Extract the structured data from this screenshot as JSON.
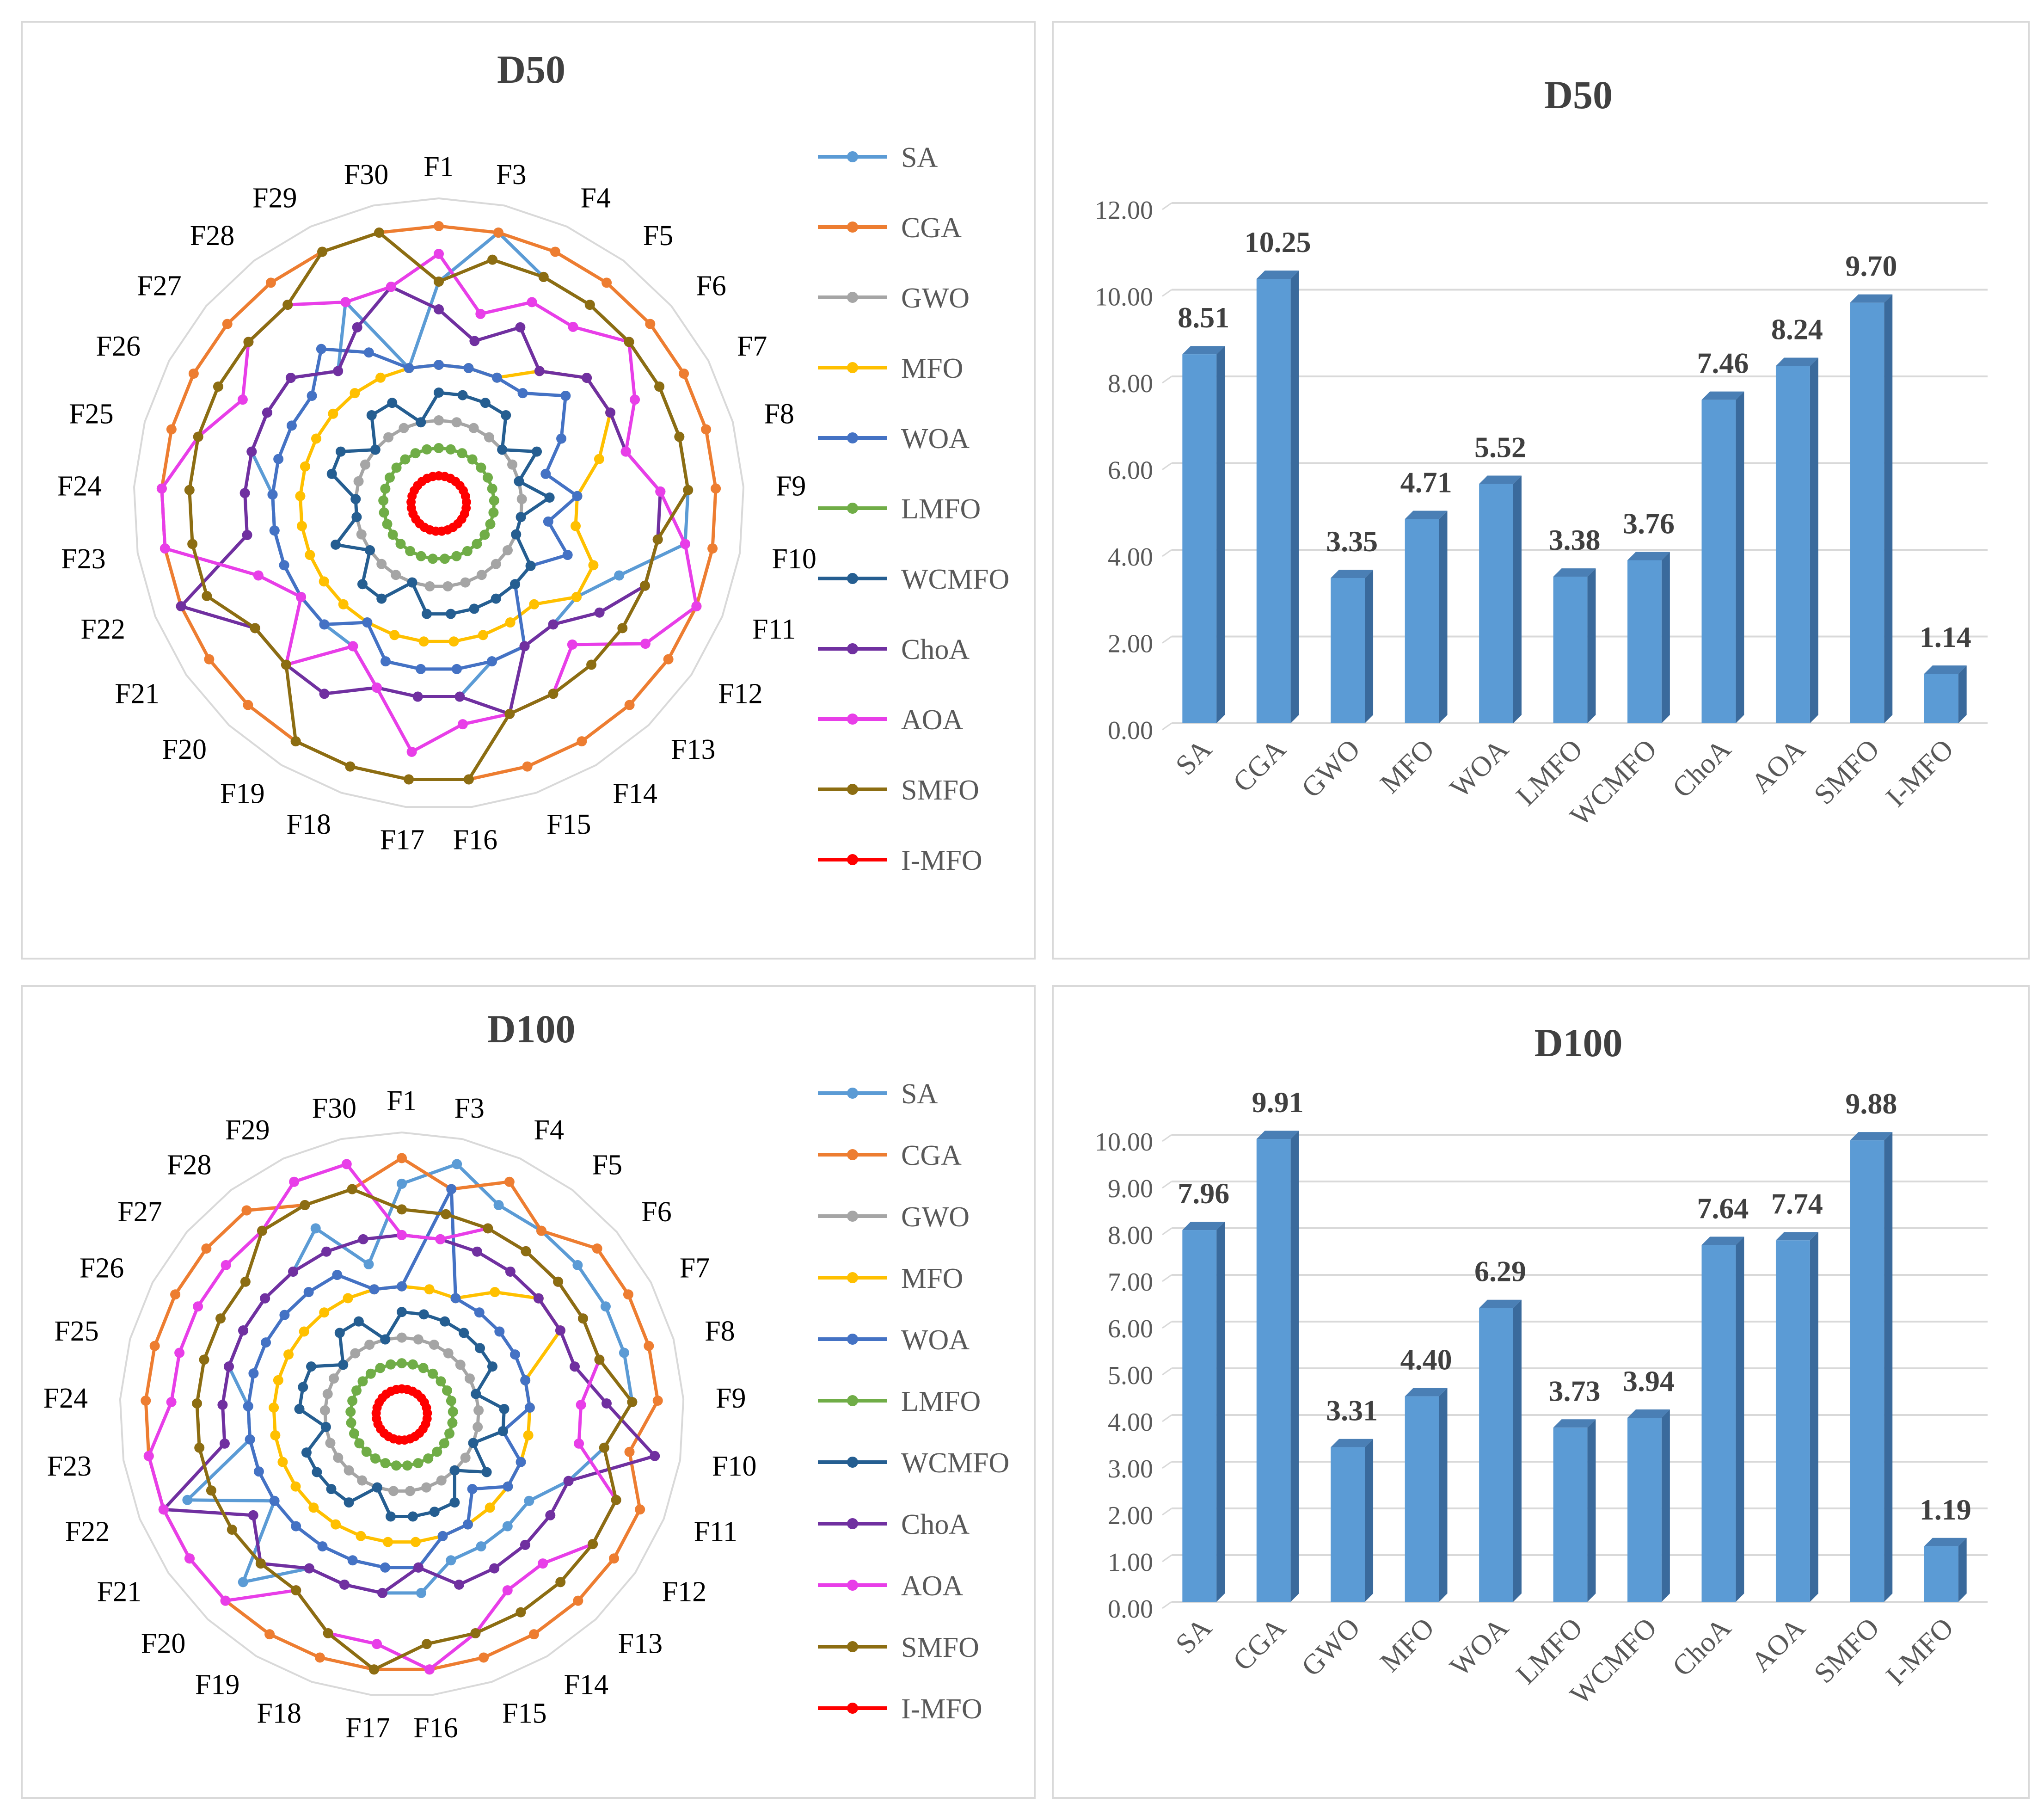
{
  "charts": [
    {
      "chart_data": {
        "type": "radar",
        "title": "D50",
        "axes": [
          "F1",
          "F3",
          "F4",
          "F5",
          "F6",
          "F7",
          "F8",
          "F9",
          "F10",
          "F11",
          "F12",
          "F13",
          "F14",
          "F15",
          "F16",
          "F17",
          "F18",
          "F19",
          "F20",
          "F21",
          "F22",
          "F23",
          "F24",
          "F25",
          "F26",
          "F27",
          "F28",
          "F29",
          "F30"
        ],
        "rmax": 11,
        "series": [
          {
            "name": "SA",
            "color": "#5b9bd5",
            "values": [
              8,
              10,
              9,
              9,
              9,
              9,
              9,
              9,
              9,
              7,
              6,
              6,
              6,
              6,
              7,
              7,
              7,
              6,
              6,
              6,
              6,
              6,
              6,
              7,
              7,
              7,
              6,
              8,
              5
            ]
          },
          {
            "name": "CGA",
            "color": "#ed7d31",
            "values": [
              10,
              10,
              10,
              10,
              10,
              10,
              10,
              10,
              10,
              10,
              10,
              10,
              10,
              10,
              10,
              10,
              10,
              10,
              10,
              10,
              10,
              10,
              10,
              10,
              10,
              10,
              10,
              10,
              10
            ]
          },
          {
            "name": "GWO",
            "color": "#a5a5a5",
            "values": [
              3,
              3,
              3,
              3,
              3,
              3,
              3,
              3,
              3,
              3,
              3,
              3,
              3,
              3,
              3,
              3,
              3,
              3,
              3,
              3,
              3,
              3,
              3,
              3,
              3,
              3,
              3,
              3,
              3
            ]
          },
          {
            "name": "MFO",
            "color": "#ffc000",
            "values": [
              5,
              5,
              5,
              6,
              7,
              7,
              6,
              5,
              5,
              6,
              6,
              5,
              5,
              5,
              5,
              5,
              5,
              5,
              5,
              5,
              5,
              5,
              5,
              5,
              5,
              5,
              5,
              5,
              5
            ]
          },
          {
            "name": "WOA",
            "color": "#4472c4",
            "values": [
              5,
              5,
              5,
              5,
              6,
              5,
              4,
              5,
              4,
              5,
              4,
              4,
              6,
              6,
              6,
              6,
              6,
              5,
              6,
              6,
              6,
              6,
              6,
              6,
              6,
              6,
              7,
              6,
              5
            ]
          },
          {
            "name": "LMFO",
            "color": "#70ad47",
            "values": [
              2,
              2,
              2,
              2,
              2,
              2,
              2,
              2,
              2,
              2,
              2,
              2,
              2,
              2,
              2,
              2,
              2,
              2,
              2,
              2,
              2,
              2,
              2,
              2,
              2,
              2,
              2,
              2,
              2
            ]
          },
          {
            "name": "WCMFO",
            "color": "#255e91",
            "values": [
              4,
              4,
              4,
              4,
              3,
              4,
              3,
              4,
              3,
              3,
              4,
              4,
              4,
              4,
              4,
              4,
              3,
              4,
              4,
              3,
              4,
              3,
              3,
              4,
              4,
              3,
              4,
              4,
              3
            ]
          },
          {
            "name": "ChoA",
            "color": "#7030a0",
            "values": [
              7,
              6,
              7,
              6,
              7,
              7,
              7,
              8,
              8,
              8,
              7,
              6,
              6,
              8,
              7,
              7,
              7,
              8,
              8,
              8,
              10,
              7,
              7,
              7,
              7,
              7,
              6,
              7,
              8
            ]
          },
          {
            "name": "AOA",
            "color": "#e83ee8",
            "values": [
              9,
              7,
              8,
              8,
              9,
              8,
              7,
              8,
              9,
              10,
              9,
              7,
              8,
              8,
              8,
              9,
              7,
              6,
              8,
              6,
              7,
              10,
              10,
              9,
              8,
              9,
              9,
              8,
              8
            ]
          },
          {
            "name": "SMFO",
            "color": "#8c6d12",
            "values": [
              8,
              9,
              9,
              9,
              9,
              9,
              9,
              9,
              8,
              8,
              8,
              8,
              8,
              8,
              10,
              10,
              10,
              10,
              8,
              8,
              9,
              9,
              9,
              9,
              9,
              9,
              9,
              10,
              10
            ]
          },
          {
            "name": "I-MFO",
            "color": "#ff0000",
            "values": [
              1,
              1,
              1,
              1,
              1,
              1,
              1,
              1,
              1,
              1,
              1,
              1,
              1,
              1,
              1,
              1,
              1,
              1,
              1,
              1,
              1,
              1,
              1,
              1,
              1,
              1,
              1,
              1,
              1
            ]
          }
        ]
      }
    },
    {
      "chart_data": {
        "type": "bar",
        "title": "D50",
        "categories": [
          "SA",
          "CGA",
          "GWO",
          "MFO",
          "WOA",
          "LMFO",
          "WCMFO",
          "ChoA",
          "AOA",
          "SMFO",
          "I-MFO"
        ],
        "values": [
          8.51,
          10.25,
          3.35,
          4.71,
          5.52,
          3.38,
          3.76,
          7.46,
          8.24,
          9.7,
          1.14
        ],
        "value_labels": [
          "8.51",
          "10.25",
          "3.35",
          "4.71",
          "5.52",
          "3.38",
          "3.76",
          "7.46",
          "8.24",
          "9.70",
          "1.14"
        ],
        "ylim": [
          0,
          12
        ],
        "yticks": [
          "0.00",
          "2.00",
          "4.00",
          "6.00",
          "8.00",
          "10.00",
          "12.00"
        ],
        "ytick_step": 2,
        "bar_color": "#5b9bd5",
        "grid": true
      }
    },
    {
      "chart_data": {
        "type": "radar",
        "title": "D100",
        "axes": [
          "F1",
          "F3",
          "F4",
          "F5",
          "F6",
          "F7",
          "F8",
          "F9",
          "F10",
          "F11",
          "F12",
          "F13",
          "F14",
          "F15",
          "F16",
          "F17",
          "F18",
          "F19",
          "F20",
          "F21",
          "F22",
          "F23",
          "F24",
          "F25",
          "F26",
          "F27",
          "F28",
          "F29",
          "F30"
        ],
        "rmax": 11,
        "series": [
          {
            "name": "SA",
            "color": "#5b9bd5",
            "values": [
              9,
              10,
              9,
              9,
              9,
              9,
              9,
              9,
              8,
              7,
              6,
              6,
              6,
              6,
              7,
              7,
              7,
              7,
              9,
              6,
              9,
              6,
              6,
              7,
              7,
              7,
              7,
              8,
              6
            ]
          },
          {
            "name": "CGA",
            "color": "#ed7d31",
            "values": [
              10,
              9,
              10,
              9,
              10,
              10,
              10,
              10,
              9,
              10,
              10,
              10,
              10,
              10,
              10,
              10,
              10,
              10,
              10,
              10,
              10,
              10,
              10,
              10,
              10,
              10,
              10,
              9,
              9
            ]
          },
          {
            "name": "GWO",
            "color": "#a5a5a5",
            "values": [
              3,
              3,
              3,
              3,
              3,
              3,
              3,
              3,
              3,
              3,
              3,
              3,
              3,
              3,
              3,
              3,
              3,
              3,
              3,
              3,
              3,
              3,
              3,
              3,
              3,
              3,
              3,
              3,
              3
            ]
          },
          {
            "name": "MFO",
            "color": "#ffc000",
            "values": [
              5,
              5,
              5,
              6,
              7,
              7,
              5,
              5,
              5,
              5,
              5,
              5,
              5,
              5,
              5,
              5,
              5,
              5,
              5,
              5,
              5,
              5,
              5,
              5,
              5,
              5,
              5,
              5,
              5
            ]
          },
          {
            "name": "WOA",
            "color": "#4472c4",
            "values": [
              5,
              9,
              5,
              5,
              5,
              5,
              5,
              5,
              4,
              5,
              5,
              4,
              5,
              5,
              6,
              6,
              6,
              6,
              6,
              6,
              6,
              6,
              6,
              6,
              6,
              6,
              6,
              6,
              5
            ]
          },
          {
            "name": "LMFO",
            "color": "#70ad47",
            "values": [
              2,
              2,
              2,
              2,
              2,
              2,
              2,
              2,
              2,
              2,
              2,
              2,
              2,
              2,
              2,
              2,
              2,
              2,
              2,
              2,
              2,
              2,
              2,
              2,
              2,
              2,
              2,
              2,
              2
            ]
          },
          {
            "name": "WCMFO",
            "color": "#255e91",
            "values": [
              4,
              4,
              4,
              4,
              4,
              4,
              3,
              4,
              4,
              3,
              4,
              3,
              4,
              4,
              4,
              4,
              3,
              4,
              4,
              4,
              4,
              3,
              4,
              4,
              4,
              3,
              4,
              4,
              3
            ]
          },
          {
            "name": "ChoA",
            "color": "#7030a0",
            "values": [
              7,
              7,
              7,
              7,
              7,
              7,
              7,
              8,
              10,
              7,
              7,
              7,
              7,
              7,
              6,
              7,
              7,
              7,
              8,
              7,
              10,
              7,
              7,
              7,
              7,
              7,
              7,
              7,
              7
            ]
          },
          {
            "name": "AOA",
            "color": "#e83ee8",
            "values": [
              7,
              7,
              8,
              8,
              8,
              8,
              8,
              7,
              7,
              9,
              9,
              8,
              8,
              9,
              10,
              9,
              9,
              8,
              10,
              10,
              10,
              10,
              9,
              9,
              9,
              9,
              9,
              10,
              10
            ]
          },
          {
            "name": "SMFO",
            "color": "#8c6d12",
            "values": [
              8,
              8,
              8,
              8,
              8,
              8,
              8,
              9,
              8,
              9,
              9,
              9,
              9,
              9,
              9,
              10,
              9,
              8,
              8,
              8,
              8,
              8,
              8,
              8,
              8,
              8,
              9,
              9,
              9
            ]
          },
          {
            "name": "I-MFO",
            "color": "#ff0000",
            "values": [
              1,
              1,
              1,
              1,
              1,
              1,
              1,
              1,
              1,
              1,
              1,
              1,
              1,
              1,
              1,
              1,
              1,
              1,
              1,
              1,
              1,
              1,
              1,
              1,
              1,
              1,
              1,
              1,
              1
            ]
          }
        ]
      }
    },
    {
      "chart_data": {
        "type": "bar",
        "title": "D100",
        "categories": [
          "SA",
          "CGA",
          "GWO",
          "MFO",
          "WOA",
          "LMFO",
          "WCMFO",
          "ChoA",
          "AOA",
          "SMFO",
          "I-MFO"
        ],
        "values": [
          7.96,
          9.91,
          3.31,
          4.4,
          6.29,
          3.73,
          3.94,
          7.64,
          7.74,
          9.88,
          1.19
        ],
        "value_labels": [
          "7.96",
          "9.91",
          "3.31",
          "4.40",
          "6.29",
          "3.73",
          "3.94",
          "7.64",
          "7.74",
          "9.88",
          "1.19"
        ],
        "ylim": [
          0,
          10
        ],
        "yticks": [
          "0.00",
          "1.00",
          "2.00",
          "3.00",
          "4.00",
          "5.00",
          "6.00",
          "7.00",
          "8.00",
          "9.00",
          "10.00"
        ],
        "ytick_step": 1,
        "bar_color": "#5b9bd5",
        "grid": true
      }
    }
  ]
}
